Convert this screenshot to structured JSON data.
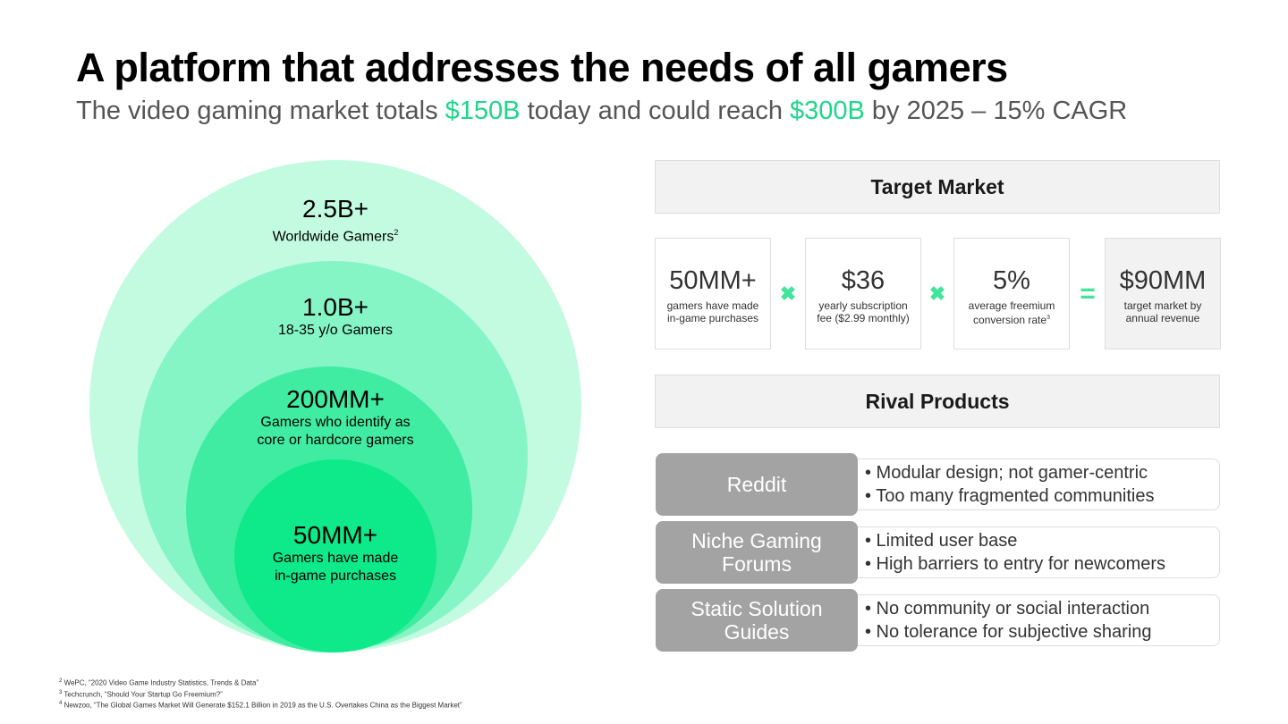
{
  "title": "A platform that addresses the needs of all gamers",
  "subtitle": {
    "part1": "The video gaming market totals ",
    "value1": "$150B",
    "part2": " today and could reach ",
    "value2": "$300B",
    "part3": " by 2025 – 15% CAGR"
  },
  "circles": [
    {
      "value": "2.5B+",
      "label": "Worldwide Gamers",
      "footnote_ref": "2",
      "color": "#c3fbe1"
    },
    {
      "value": "1.0B+",
      "label": "18-35 y/o Gamers",
      "color": "#86f5c5"
    },
    {
      "value": "200MM+",
      "label_line1": "Gamers who identify as",
      "label_line2": "core or hardcore gamers",
      "color": "#3feca2"
    },
    {
      "value": "50MM+",
      "label_line1": "Gamers have made",
      "label_line2": "in-game purchases",
      "color": "#0ee989"
    }
  ],
  "target_market": {
    "header": "Target Market",
    "boxes": [
      {
        "value": "50MM+",
        "line1": "gamers have made",
        "line2": "in-game purchases"
      },
      {
        "value": "$36",
        "line1": "yearly subscription",
        "line2": "fee ($2.99 monthly)"
      },
      {
        "value": "5%",
        "line1": "average freemium",
        "line2": "conversion rate",
        "footnote_ref": "3"
      },
      {
        "value": "$90MM",
        "line1": "target market by",
        "line2": "annual revenue"
      }
    ],
    "operators": [
      "✖",
      "✖",
      "="
    ]
  },
  "rival_products": {
    "header": "Rival Products",
    "items": [
      {
        "name": "Reddit",
        "points": [
          "• Modular design; not gamer-centric",
          "• Too many fragmented communities"
        ]
      },
      {
        "name": "Niche Gaming Forums",
        "points": [
          "• Limited user base",
          "• High barriers to entry for newcomers"
        ]
      },
      {
        "name": "Static Solution Guides",
        "points": [
          "• No community or social interaction",
          "• No tolerance for subjective sharing"
        ]
      }
    ]
  },
  "footnotes": [
    {
      "num": "2",
      "text": " WePC, “2020 Video Game Industry Statistics, Trends & Data”"
    },
    {
      "num": "3",
      "text": " Techcrunch, “Should Your Startup Go Freemium?”"
    },
    {
      "num": "4",
      "text": " Newzoo, “The Global Games Market Will Generate $152.1 Billion in 2019 as the U.S. Overtakes China as the Biggest Market”"
    }
  ],
  "colors": {
    "accent": "#1ed68a",
    "operator": "#3ee59a",
    "rival_name_bg": "#a3a3a3",
    "header_bg": "#f2f2f2"
  }
}
